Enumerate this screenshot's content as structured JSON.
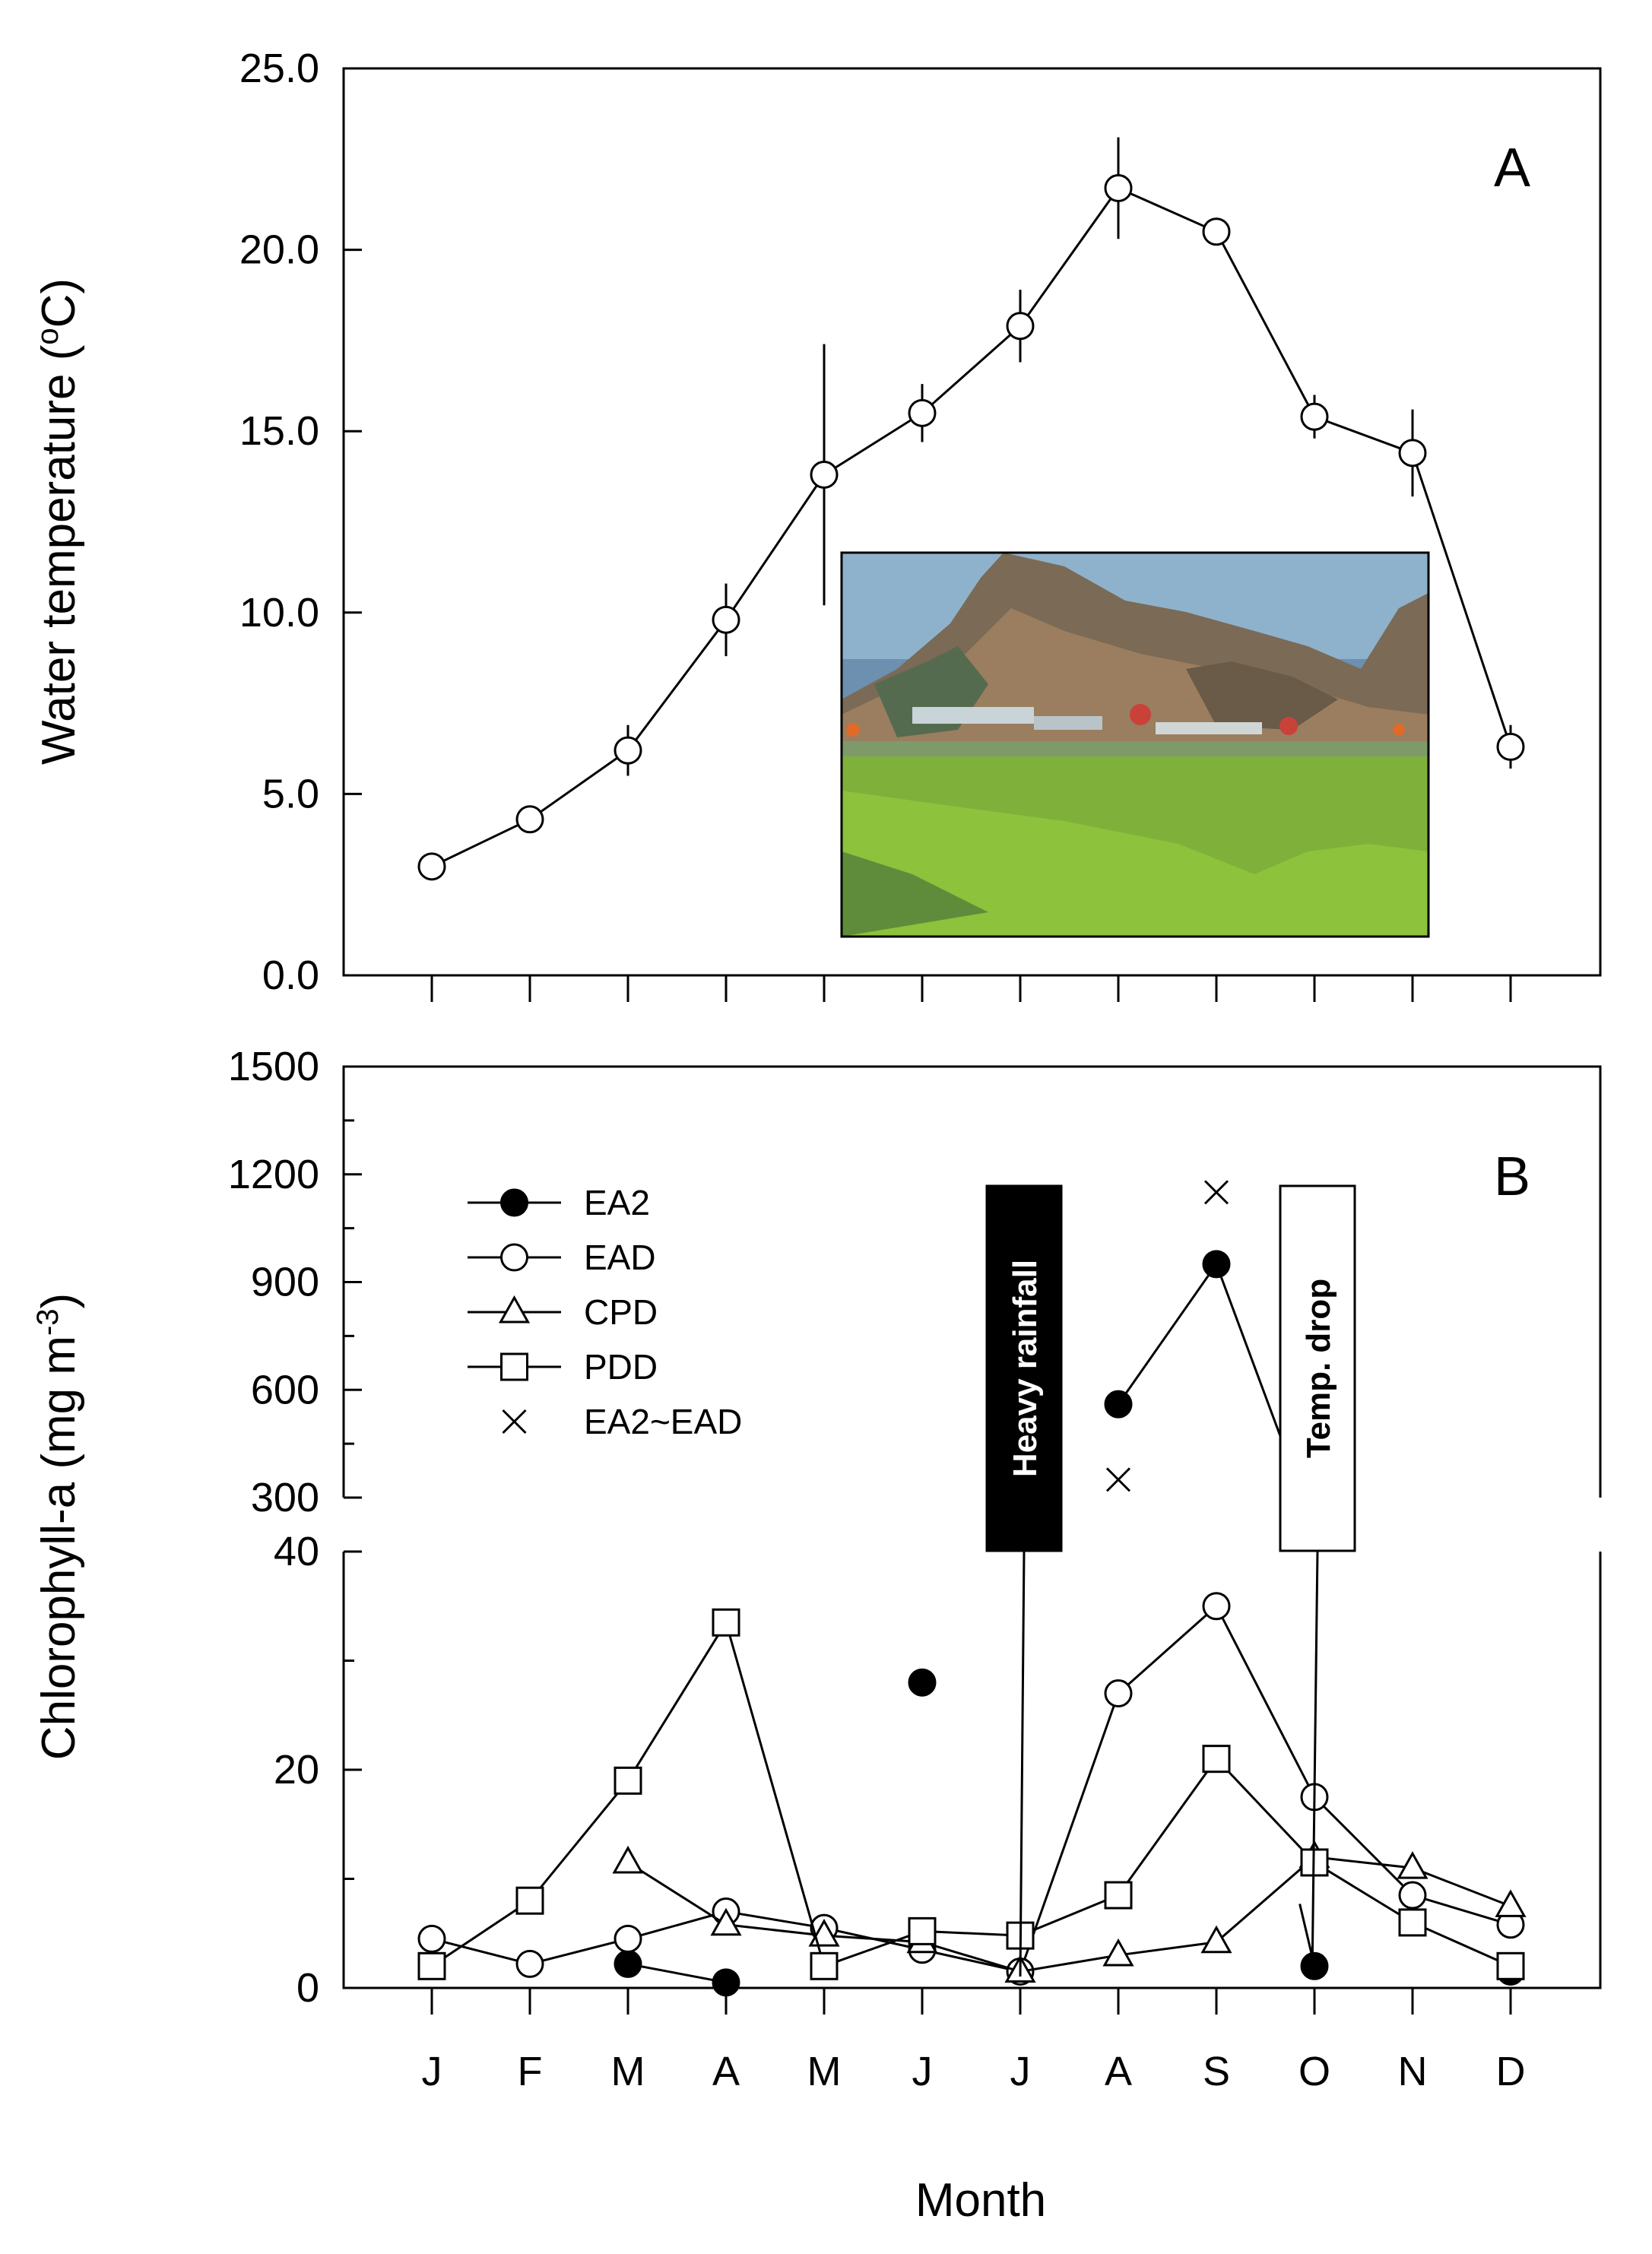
{
  "chart_data": [
    {
      "panel": "A",
      "type": "line",
      "ylabel": "Water temperature (",
      "ylabel_unit": "°C)",
      "ylabel_unit_sup": "o",
      "ylabel_unit_rest": "C)",
      "ylim": [
        0,
        25
      ],
      "ytick_labels": [
        "0.0",
        "5.0",
        "10.0",
        "15.0",
        "20.0",
        "25.0"
      ],
      "yticks": [
        0,
        5,
        10,
        15,
        20,
        25
      ],
      "categories": [
        "J",
        "F",
        "M",
        "A",
        "M",
        "J",
        "J",
        "A",
        "S",
        "O",
        "N",
        "D"
      ],
      "series": [
        {
          "marker": "open-circle",
          "values": [
            3.0,
            4.3,
            6.2,
            9.8,
            13.8,
            15.5,
            17.9,
            21.7,
            20.5,
            15.4,
            14.4,
            6.3
          ],
          "error": [
            0,
            0,
            0.7,
            1.0,
            3.6,
            0.8,
            1.0,
            1.4,
            0,
            0.6,
            1.2,
            0.6
          ]
        }
      ],
      "inset_photo": "lake-with-green-algal-bloom-and-rocky-mountain"
    },
    {
      "panel": "B",
      "type": "line",
      "ylabel": "Chlorophyll-a (mg m",
      "ylabel_sup": "-3",
      "ylabel_close": ")",
      "broken_axis": true,
      "ylim_lower": [
        0,
        40
      ],
      "ylim_upper": [
        300,
        1500
      ],
      "ytick_labels_lower": [
        "0",
        "20",
        "40"
      ],
      "yticks_lower": [
        0,
        20,
        40
      ],
      "ytick_labels_upper": [
        "300",
        "600",
        "900",
        "1200",
        "1500"
      ],
      "yticks_upper": [
        300,
        600,
        900,
        1200,
        1500
      ],
      "xlabel": "Month",
      "categories": [
        "J",
        "F",
        "M",
        "A",
        "M",
        "J",
        "J",
        "A",
        "S",
        "O",
        "N",
        "D"
      ],
      "series": [
        {
          "name": "EA2",
          "marker": "filled-circle",
          "values": [
            null,
            null,
            2.2,
            0.5,
            null,
            28.0,
            null,
            560,
            950,
            2.0,
            null,
            1.5
          ]
        },
        {
          "name": "EAD",
          "marker": "open-circle",
          "values": [
            4.5,
            2.2,
            4.5,
            7.0,
            5.5,
            3.5,
            1.5,
            27.0,
            35.0,
            17.5,
            8.5,
            5.8
          ]
        },
        {
          "name": "CPD",
          "marker": "open-triangle",
          "values": [
            null,
            null,
            11.5,
            5.8,
            4.8,
            4.2,
            1.5,
            3.0,
            4.2,
            12.0,
            11.0,
            7.5
          ]
        },
        {
          "name": "PDD",
          "marker": "open-square",
          "values": [
            2.0,
            8.0,
            19.0,
            33.5,
            2.0,
            5.2,
            4.8,
            8.5,
            21.0,
            11.5,
            6.0,
            2.0
          ]
        },
        {
          "name": "EA2~EAD",
          "marker": "x",
          "values": [
            null,
            null,
            null,
            null,
            null,
            null,
            null,
            350,
            1150,
            null,
            null,
            null
          ]
        }
      ],
      "annotations": [
        {
          "text": "Heavy rainfall",
          "month_index": 6,
          "style": "filled"
        },
        {
          "text": "Temp. drop",
          "month_index": 9,
          "style": "outline"
        }
      ]
    }
  ]
}
